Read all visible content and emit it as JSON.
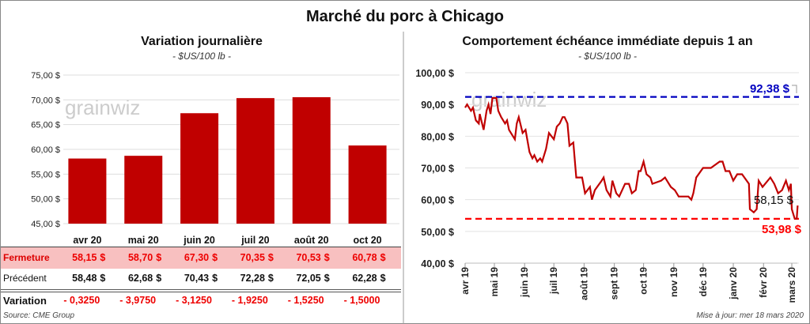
{
  "title": "Marché du porc à Chicago",
  "left": {
    "title": "Variation journalière",
    "subtitle": "- $US/100 lb -",
    "watermark": "grainwiz"
  },
  "right": {
    "title": "Comportement  échéance immédiate depuis 1 an",
    "subtitle": "- $US/100 lb -",
    "watermark": "grainwiz"
  },
  "table": {
    "rows": [
      {
        "label": "Fermeture",
        "values": [
          "58,15",
          "58,70",
          "67,30",
          "70,35",
          "70,53",
          "60,78"
        ],
        "unit": "$"
      },
      {
        "label": "Précédent",
        "values": [
          "58,48",
          "62,68",
          "70,43",
          "72,28",
          "72,05",
          "62,28"
        ],
        "unit": "$"
      },
      {
        "label": "Variation",
        "values": [
          "- 0,3250",
          "- 3,9750",
          "- 3,1250",
          "- 1,9250",
          "- 1,5250",
          "- 1,5000"
        ]
      }
    ]
  },
  "source": "Source: CME Group",
  "updated": "Mise à jour: mer 18 mars 2020",
  "colors": {
    "bar": "#c00000",
    "line": "#c00000",
    "high": "#0000c0",
    "low": "#ff0000",
    "fermeture_bg": "#f8c0c0"
  },
  "chart_data": [
    {
      "type": "bar",
      "title": "Variation journalière",
      "subtitle": "- $US/100 lb -",
      "categories": [
        "avr 20",
        "mai 20",
        "juin 20",
        "juil 20",
        "août 20",
        "oct 20"
      ],
      "values": [
        58.15,
        58.7,
        67.3,
        70.35,
        70.53,
        60.78
      ],
      "ylim": [
        45,
        75
      ],
      "yticks": [
        "45,00 $",
        "50,00 $",
        "55,00 $",
        "60,00 $",
        "65,00 $",
        "70,00 $",
        "75,00 $"
      ],
      "grid": true
    },
    {
      "type": "line",
      "title": "Comportement  échéance immédiate depuis 1 an",
      "subtitle": "- $US/100 lb -",
      "ylim": [
        40,
        100
      ],
      "yticks": [
        "40,00 $",
        "50,00 $",
        "60,00 $",
        "70,00 $",
        "80,00 $",
        "90,00 $",
        "100,00 $"
      ],
      "xticks": [
        [
          "2019-04-01",
          "avr 19"
        ],
        [
          "2019-05-01",
          "mai 19"
        ],
        [
          "2019-06-01",
          "juin 19"
        ],
        [
          "2019-07-01",
          "juil 19"
        ],
        [
          "2019-08-01",
          "août 19"
        ],
        [
          "2019-09-01",
          "sept 19"
        ],
        [
          "2019-10-01",
          "oct 19"
        ],
        [
          "2019-11-01",
          "nov 19"
        ],
        [
          "2019-12-01",
          "déc 19"
        ],
        [
          "2020-01-01",
          "janv 20"
        ],
        [
          "2020-02-01",
          "févr 20"
        ],
        [
          "2020-03-01",
          "mars 20"
        ]
      ],
      "grid": true,
      "high": {
        "value": 92.38,
        "label": "92,38 $"
      },
      "low": {
        "value": 53.98,
        "label": "53,98 $"
      },
      "last": {
        "value": 58.15,
        "label": "58,15 $"
      },
      "points": [
        [
          "2019-04-01",
          89
        ],
        [
          "2019-04-03",
          90
        ],
        [
          "2019-04-07",
          88
        ],
        [
          "2019-04-09",
          89
        ],
        [
          "2019-04-12",
          85
        ],
        [
          "2019-04-15",
          84
        ],
        [
          "2019-04-16",
          87
        ],
        [
          "2019-04-20",
          82
        ],
        [
          "2019-04-23",
          88
        ],
        [
          "2019-04-25",
          90
        ],
        [
          "2019-04-27",
          87
        ],
        [
          "2019-04-29",
          92
        ],
        [
          "2019-05-03",
          92
        ],
        [
          "2019-05-05",
          88
        ],
        [
          "2019-05-08",
          86
        ],
        [
          "2019-05-12",
          84
        ],
        [
          "2019-05-14",
          85
        ],
        [
          "2019-05-16",
          82
        ],
        [
          "2019-05-22",
          79
        ],
        [
          "2019-05-24",
          84
        ],
        [
          "2019-05-26",
          86
        ],
        [
          "2019-05-30",
          81
        ],
        [
          "2019-06-02",
          82
        ],
        [
          "2019-06-06",
          75
        ],
        [
          "2019-06-09",
          73
        ],
        [
          "2019-06-11",
          74
        ],
        [
          "2019-06-14",
          72
        ],
        [
          "2019-06-17",
          73
        ],
        [
          "2019-06-19",
          72
        ],
        [
          "2019-06-23",
          76
        ],
        [
          "2019-06-26",
          81
        ],
        [
          "2019-07-01",
          79
        ],
        [
          "2019-07-04",
          83
        ],
        [
          "2019-07-07",
          84
        ],
        [
          "2019-07-10",
          86
        ],
        [
          "2019-07-12",
          86
        ],
        [
          "2019-07-15",
          84
        ],
        [
          "2019-07-17",
          77
        ],
        [
          "2019-07-21",
          78
        ],
        [
          "2019-07-24",
          67
        ],
        [
          "2019-07-30",
          67
        ],
        [
          "2019-08-02",
          62
        ],
        [
          "2019-08-07",
          64
        ],
        [
          "2019-08-09",
          60
        ],
        [
          "2019-08-12",
          63
        ],
        [
          "2019-08-19",
          66
        ],
        [
          "2019-08-21",
          67
        ],
        [
          "2019-08-24",
          63
        ],
        [
          "2019-08-28",
          61
        ],
        [
          "2019-08-30",
          66
        ],
        [
          "2019-09-03",
          62
        ],
        [
          "2019-09-06",
          61
        ],
        [
          "2019-09-12",
          65
        ],
        [
          "2019-09-16",
          65
        ],
        [
          "2019-09-19",
          62
        ],
        [
          "2019-09-23",
          63
        ],
        [
          "2019-09-26",
          69
        ],
        [
          "2019-09-28",
          69
        ],
        [
          "2019-10-01",
          72
        ],
        [
          "2019-10-04",
          68
        ],
        [
          "2019-10-08",
          67
        ],
        [
          "2019-10-10",
          65
        ],
        [
          "2019-10-19",
          66
        ],
        [
          "2019-10-23",
          67
        ],
        [
          "2019-10-29",
          64
        ],
        [
          "2019-11-02",
          63
        ],
        [
          "2019-11-06",
          61
        ],
        [
          "2019-11-16",
          61
        ],
        [
          "2019-11-19",
          60
        ],
        [
          "2019-11-21",
          62
        ],
        [
          "2019-11-24",
          67
        ],
        [
          "2019-12-01",
          70
        ],
        [
          "2019-12-09",
          70
        ],
        [
          "2019-12-18",
          72
        ],
        [
          "2019-12-21",
          72
        ],
        [
          "2019-12-24",
          69
        ],
        [
          "2019-12-28",
          69
        ],
        [
          "2020-01-01",
          66
        ],
        [
          "2020-01-05",
          68
        ],
        [
          "2020-01-10",
          68
        ],
        [
          "2020-01-17",
          65
        ],
        [
          "2020-01-18",
          57
        ],
        [
          "2020-01-22",
          56
        ],
        [
          "2020-01-25",
          57
        ],
        [
          "2020-01-27",
          66
        ],
        [
          "2020-01-31",
          64
        ],
        [
          "2020-02-08",
          67
        ],
        [
          "2020-02-12",
          65
        ],
        [
          "2020-02-16",
          62
        ],
        [
          "2020-02-20",
          63
        ],
        [
          "2020-02-24",
          66
        ],
        [
          "2020-02-27",
          63
        ],
        [
          "2020-02-29",
          65
        ],
        [
          "2020-03-01",
          57
        ],
        [
          "2020-03-04",
          54
        ],
        [
          "2020-03-06",
          54
        ],
        [
          "2020-03-07",
          58.15
        ]
      ]
    }
  ]
}
